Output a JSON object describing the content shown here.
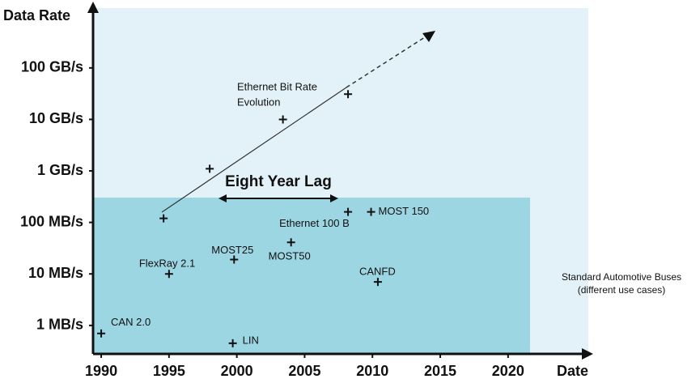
{
  "chart_data": {
    "type": "scatter",
    "log_y": true,
    "y_label": "Data Rate",
    "x_label": "Date",
    "xlim": [
      1989.4,
      2025.5
    ],
    "xticks": [
      1990,
      1995,
      2000,
      2005,
      2010,
      2015,
      2020
    ],
    "ylim": [
      0.28,
      1450000
    ],
    "yticks": [
      {
        "value": 1,
        "label": "1 MB/s"
      },
      {
        "value": 10,
        "label": "10 MB/s"
      },
      {
        "value": 100,
        "label": "100 MB/s"
      },
      {
        "value": 1000,
        "label": "1 GB/s"
      },
      {
        "value": 10000,
        "label": "10 GB/s"
      },
      {
        "value": 100000,
        "label": "100 GB/s"
      }
    ],
    "color": "#111111",
    "points": [
      {
        "label": "CAN 2.0",
        "x": 1990,
        "y": 0.7
      },
      {
        "label": "LIN",
        "x": 1999.7,
        "y": 0.45
      },
      {
        "label": "FlexRay 2.1",
        "x": 1995,
        "y": 10
      },
      {
        "label": "MOST25",
        "x": 1999.8,
        "y": 19
      },
      {
        "label": "MOST50",
        "x": 2004,
        "y": 41
      },
      {
        "label": "CANFD",
        "x": 2010.4,
        "y": 7
      },
      {
        "label": "Ethernet 100 B",
        "x": 2008.2,
        "y": 160
      },
      {
        "label": "MOST 150",
        "x": 2009.9,
        "y": 160
      },
      {
        "x": 1994.6,
        "y": 120
      },
      {
        "x": 1998,
        "y": 1100
      },
      {
        "x": 2003.4,
        "y": 10000
      },
      {
        "x": 2008.2,
        "y": 31000
      }
    ],
    "trend_label": [
      "Ethernet Bit Rate",
      "Evolution"
    ],
    "lag_label": "Eight Year Lag",
    "region_label": [
      "Standard Automotive Buses",
      "(different use cases)"
    ]
  }
}
